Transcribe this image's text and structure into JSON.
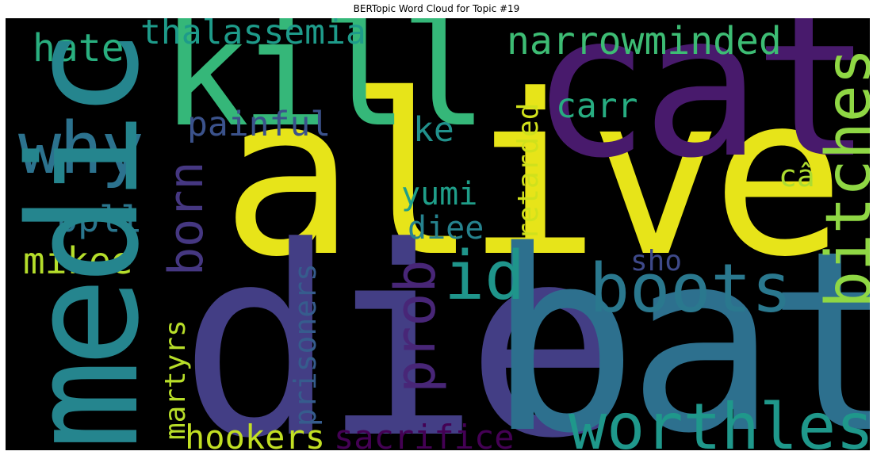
{
  "title": "BERTopic Word Cloud for Topic #19",
  "words": [
    {
      "text": "alive",
      "color": "#e7e419"
    },
    {
      "text": "die",
      "color": "#433e85"
    },
    {
      "text": "bat",
      "color": "#2d708e"
    },
    {
      "text": "cat",
      "color": "#481a6c"
    },
    {
      "text": "kill",
      "color": "#35b779"
    },
    {
      "text": "medic",
      "color": "#25858e"
    },
    {
      "text": "bitches",
      "color": "#8fd744"
    },
    {
      "text": "worthless",
      "color": "#1f988b"
    },
    {
      "text": "boots",
      "color": "#2a788e"
    },
    {
      "text": "why",
      "color": "#2c728e"
    },
    {
      "text": "prob",
      "color": "#482677"
    },
    {
      "text": "born",
      "color": "#453781"
    },
    {
      "text": "id",
      "color": "#1f958b"
    },
    {
      "text": "narrowminded",
      "color": "#3dbc74"
    },
    {
      "text": "thalassemia",
      "color": "#1e9b8a"
    },
    {
      "text": "hate",
      "color": "#29af7f"
    },
    {
      "text": "painful",
      "color": "#3b528b"
    },
    {
      "text": "ke",
      "color": "#21918c"
    },
    {
      "text": "carr",
      "color": "#27ad81"
    },
    {
      "text": "retarded",
      "color": "#d0e11c"
    },
    {
      "text": "câ",
      "color": "#addc30"
    },
    {
      "text": "yumi",
      "color": "#1f9e89"
    },
    {
      "text": "diee",
      "color": "#26828e"
    },
    {
      "text": "ppll",
      "color": "#2a768e"
    },
    {
      "text": "mikee",
      "color": "#b5de2b"
    },
    {
      "text": "sho",
      "color": "#3e4989"
    },
    {
      "text": "martyrs",
      "color": "#b8de29"
    },
    {
      "text": "prisoners",
      "color": "#365c8d"
    },
    {
      "text": "hookers",
      "color": "#c2df23"
    },
    {
      "text": "sacrifice",
      "color": "#440154"
    }
  ]
}
